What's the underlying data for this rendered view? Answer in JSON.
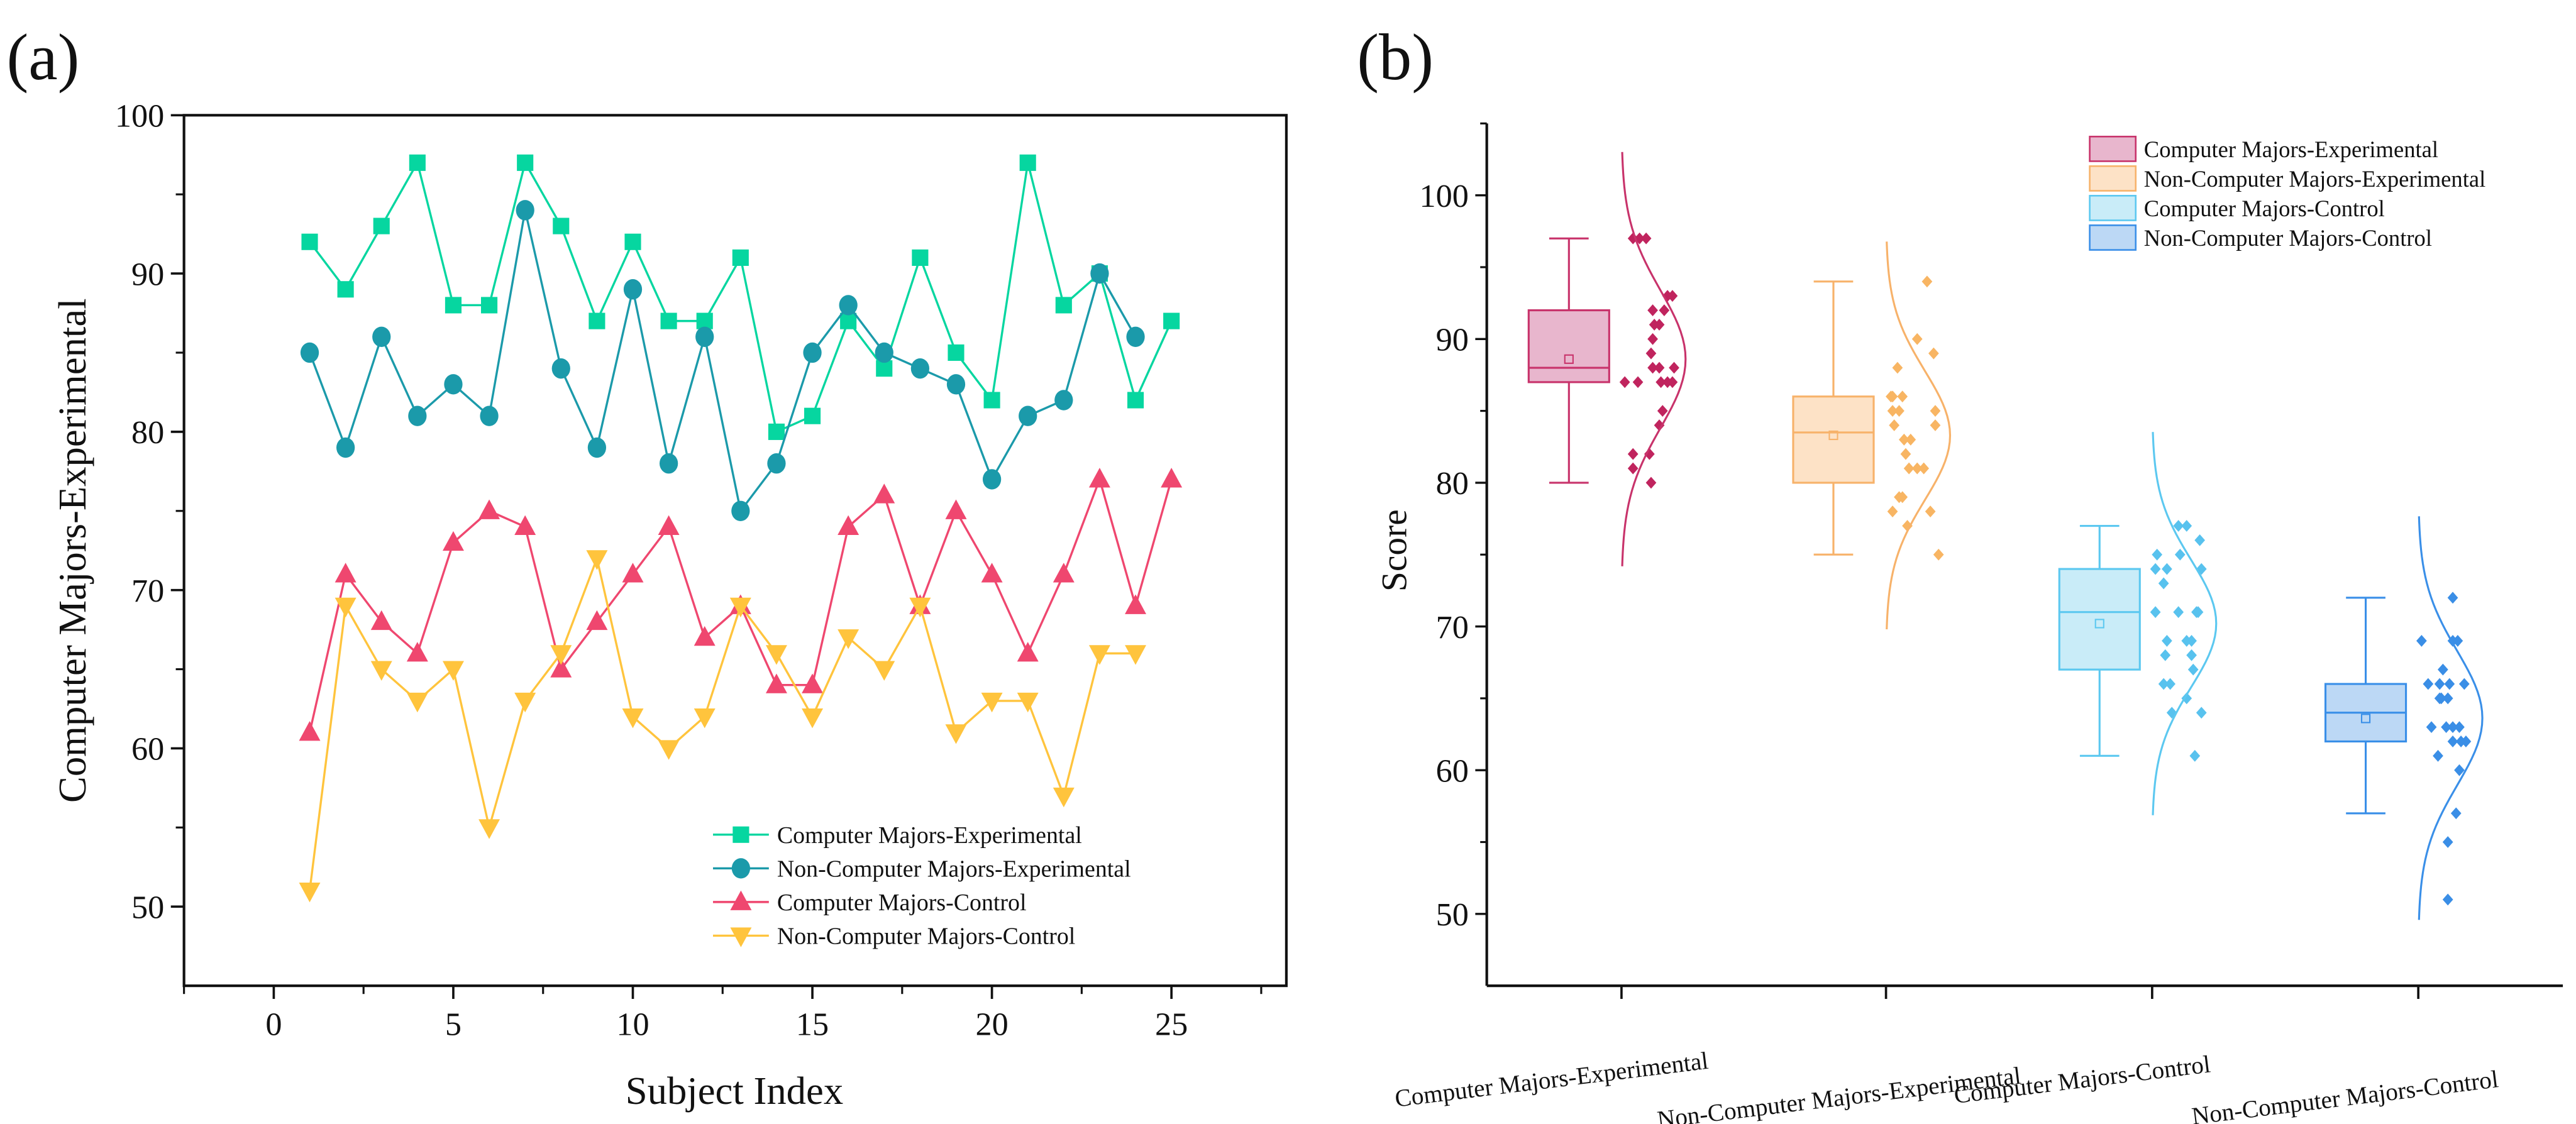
{
  "panels": {
    "a_label": "(a)",
    "b_label": "(b)"
  },
  "colors": {
    "a": [
      "#06d6a0",
      "#1b9aaa",
      "#ef476f",
      "#ffc43d"
    ],
    "b_fill": [
      "#e8b6cd",
      "#fde2c6",
      "#c9ecf8",
      "#bcd8f5"
    ],
    "b_stroke": [
      "#c8336b",
      "#f7b26a",
      "#5cc8f0",
      "#3a8fe8"
    ],
    "b_dot": [
      "#c0245e",
      "#f8b563",
      "#58c2ee",
      "#3a8ee6"
    ]
  },
  "chart_data": [
    {
      "type": "line",
      "title": "",
      "xlabel": "Subject Index",
      "ylabel": "Computer Majors-Experimental",
      "xlim": [
        -2.5,
        28.2
      ],
      "ylim": [
        45,
        100
      ],
      "xticks": [
        "0",
        "5",
        "10",
        "15",
        "20",
        "25"
      ],
      "yticks": [
        "50",
        "60",
        "70",
        "80",
        "90",
        "100"
      ],
      "grid": false,
      "legend_position": "bottom-right",
      "series": [
        {
          "name": "Computer Majors-Experimental",
          "marker": "square",
          "x": [
            1,
            2,
            3,
            4,
            5,
            6,
            7,
            8,
            9,
            10,
            11,
            12,
            13,
            14,
            15,
            16,
            17,
            18,
            19,
            20,
            21,
            22,
            23,
            24,
            25
          ],
          "y": [
            92,
            89,
            93,
            97,
            88,
            88,
            97,
            93,
            87,
            92,
            87,
            87,
            91,
            80,
            81,
            87,
            84,
            91,
            85,
            82,
            97,
            88,
            90,
            82,
            87
          ]
        },
        {
          "name": "Non-Computer Majors-Experimental",
          "marker": "circle",
          "x": [
            1,
            2,
            3,
            4,
            5,
            6,
            7,
            8,
            9,
            10,
            11,
            12,
            13,
            14,
            15,
            16,
            17,
            18,
            19,
            20,
            21,
            22,
            23,
            24
          ],
          "y": [
            85,
            79,
            86,
            81,
            83,
            81,
            94,
            84,
            79,
            89,
            78,
            86,
            75,
            78,
            85,
            88,
            85,
            84,
            83,
            77,
            81,
            82,
            90,
            86
          ]
        },
        {
          "name": "Computer Majors-Control",
          "marker": "triangle-up",
          "x": [
            1,
            2,
            3,
            4,
            5,
            6,
            7,
            8,
            9,
            10,
            11,
            12,
            13,
            14,
            15,
            16,
            17,
            18,
            19,
            20,
            21,
            22,
            23,
            24,
            25
          ],
          "y": [
            61,
            71,
            68,
            66,
            73,
            75,
            74,
            65,
            68,
            71,
            74,
            67,
            69,
            64,
            64,
            74,
            76,
            69,
            75,
            71,
            66,
            71,
            77,
            69,
            77
          ]
        },
        {
          "name": "Non-Computer Majors-Control",
          "marker": "triangle-down",
          "x": [
            1,
            2,
            3,
            4,
            5,
            6,
            7,
            8,
            9,
            10,
            11,
            12,
            13,
            14,
            15,
            16,
            17,
            18,
            19,
            20,
            21,
            22,
            23,
            24
          ],
          "y": [
            51,
            69,
            65,
            63,
            65,
            55,
            63,
            66,
            72,
            62,
            60,
            62,
            69,
            66,
            62,
            67,
            65,
            69,
            61,
            63,
            63,
            57,
            66,
            66
          ]
        }
      ]
    },
    {
      "type": "box",
      "title": "",
      "xlabel": "",
      "ylabel": "Score",
      "ylim": [
        45,
        105
      ],
      "yticks": [
        "50",
        "60",
        "70",
        "80",
        "90",
        "100"
      ],
      "categories": [
        "Computer Majors-Experimental",
        "Non-Computer Majors-Experimental",
        "Computer Majors-Control",
        "Non-Computer Majors-Control"
      ],
      "legend_position": "top-right",
      "legend": [
        "Computer Majors-Experimental",
        "Non-Computer Majors-Experimental",
        "Computer Majors-Control",
        "Non-Computer Majors-Control"
      ],
      "boxes": [
        {
          "min": 80,
          "q1": 87,
          "median": 88,
          "q3": 92,
          "max": 97,
          "mean": 88.6
        },
        {
          "min": 75,
          "q1": 80,
          "median": 83.5,
          "q3": 86,
          "max": 94,
          "mean": 83.3
        },
        {
          "min": 61,
          "q1": 67,
          "median": 71,
          "q3": 74,
          "max": 77,
          "mean": 70.2
        },
        {
          "min": 57,
          "q1": 62,
          "median": 64,
          "q3": 66,
          "max": 72,
          "mean": 63.6
        }
      ],
      "points_source": "same values as panel (a) series"
    }
  ]
}
